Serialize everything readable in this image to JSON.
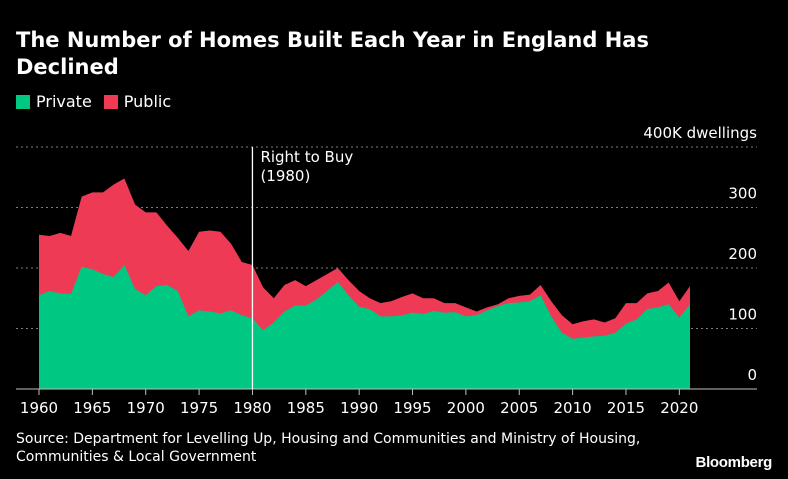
{
  "colors": {
    "private": "#00c882",
    "public": "#ee3a55",
    "grid": "#7f7f7f",
    "text": "#ffffff",
    "annotation_line": "#ffffff"
  },
  "chart_data": {
    "type": "area",
    "title": "The Number of Homes Built Each Year in England Has Declined",
    "unit_label": "400K dwellings",
    "y_ticks": [
      "0",
      "100",
      "200",
      "300",
      "400K dwellings"
    ],
    "y_tick_values": [
      0,
      100,
      200,
      300,
      400
    ],
    "ylim": [
      0,
      400
    ],
    "xlim": [
      1960,
      2021
    ],
    "x_ticks": [
      1960,
      1965,
      1970,
      1975,
      1980,
      1985,
      1990,
      1995,
      2000,
      2005,
      2010,
      2015,
      2020
    ],
    "x": [
      1960,
      1961,
      1962,
      1963,
      1964,
      1965,
      1966,
      1967,
      1968,
      1969,
      1970,
      1971,
      1972,
      1973,
      1974,
      1975,
      1976,
      1977,
      1978,
      1979,
      1980,
      1981,
      1982,
      1983,
      1984,
      1985,
      1986,
      1987,
      1988,
      1989,
      1990,
      1991,
      1992,
      1993,
      1994,
      1995,
      1996,
      1997,
      1998,
      1999,
      2000,
      2001,
      2002,
      2003,
      2004,
      2005,
      2006,
      2007,
      2008,
      2009,
      2010,
      2011,
      2012,
      2013,
      2014,
      2015,
      2016,
      2017,
      2018,
      2019,
      2020,
      2021
    ],
    "series": [
      {
        "name": "Private",
        "values": [
          155,
          162,
          158,
          157,
          202,
          198,
          190,
          185,
          205,
          165,
          155,
          170,
          172,
          162,
          120,
          130,
          128,
          125,
          130,
          122,
          117,
          97,
          110,
          128,
          138,
          138,
          148,
          162,
          177,
          155,
          136,
          132,
          120,
          120,
          122,
          126,
          124,
          129,
          126,
          127,
          120,
          122,
          130,
          137,
          142,
          143,
          145,
          155,
          120,
          93,
          83,
          85,
          87,
          88,
          93,
          108,
          115,
          132,
          135,
          140,
          118,
          140
        ]
      },
      {
        "name": "Public",
        "values": [
          255,
          253,
          258,
          253,
          318,
          325,
          325,
          338,
          348,
          305,
          292,
          292,
          270,
          250,
          228,
          260,
          262,
          260,
          240,
          210,
          205,
          168,
          150,
          172,
          180,
          170,
          180,
          190,
          200,
          180,
          162,
          150,
          142,
          145,
          152,
          158,
          150,
          150,
          142,
          142,
          135,
          128,
          135,
          140,
          150,
          154,
          156,
          172,
          145,
          122,
          107,
          112,
          115,
          110,
          117,
          142,
          142,
          158,
          162,
          176,
          145,
          170
        ]
      }
    ],
    "annotations": [
      {
        "x": 1980,
        "text_line1": "Right to Buy",
        "text_line2": "(1980)"
      }
    ]
  },
  "legend": {
    "private_label": "Private",
    "public_label": "Public"
  },
  "source_text": "Source: Department for Levelling Up, Housing and Communities and Ministry of Housing, Communities & Local Government",
  "brand": "Bloomberg"
}
